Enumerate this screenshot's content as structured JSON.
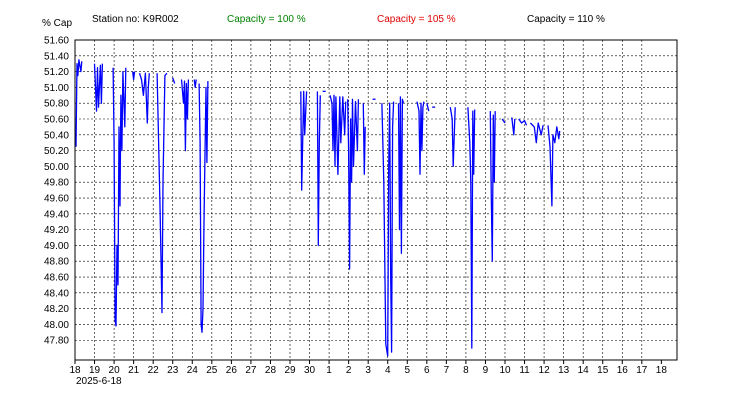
{
  "header": {
    "ylabel": "% Cap",
    "station": "Station no: K9R002",
    "capacity_labels": [
      {
        "text": "Capacity = 100 %",
        "color": "#008000"
      },
      {
        "text": "Capacity = 105 %",
        "color": "#e00000"
      },
      {
        "text": "Capacity = 110 %",
        "color": "#000000"
      }
    ],
    "date_label": "2025-6-18"
  },
  "colors": {
    "series": "#0000ff",
    "grid": "#000000",
    "frame": "#000000",
    "text": "#000000"
  },
  "chart_data": {
    "type": "line",
    "title": "",
    "ylabel": "% Cap",
    "xlabel": "",
    "ylim": [
      47.55,
      51.6
    ],
    "yticks": [
      47.8,
      48.0,
      48.2,
      48.4,
      48.6,
      48.8,
      49.0,
      49.2,
      49.4,
      49.6,
      49.8,
      50.0,
      50.2,
      50.4,
      50.6,
      50.8,
      51.0,
      51.2,
      51.4,
      51.6
    ],
    "ytick_labels": [
      "47.80",
      "48.00",
      "48.20",
      "48.40",
      "48.60",
      "48.80",
      "49.00",
      "49.20",
      "49.40",
      "49.60",
      "49.80",
      "50.00",
      "50.20",
      "50.40",
      "50.60",
      "50.80",
      "51.00",
      "51.20",
      "51.40",
      "51.60"
    ],
    "x_start_date": "2025-06-18",
    "xlim_days": [
      0,
      30.8
    ],
    "xtick_labels": [
      "18",
      "19",
      "20",
      "21",
      "22",
      "23",
      "24",
      "25",
      "26",
      "27",
      "28",
      "29",
      "30",
      "1",
      "2",
      "3",
      "4",
      "5",
      "6",
      "7",
      "8",
      "9",
      "10",
      "11",
      "12",
      "13",
      "14",
      "15",
      "16",
      "17",
      "18"
    ],
    "grid": true,
    "series": [
      {
        "name": "",
        "segments": [
          [
            [
              0.05,
              50.25
            ],
            [
              0.1,
              51.3
            ],
            [
              0.15,
              51.15
            ],
            [
              0.2,
              51.35
            ],
            [
              0.3,
              51.2
            ],
            [
              0.35,
              51.33
            ]
          ],
          [
            [
              1.0,
              51.3
            ],
            [
              1.1,
              50.7
            ],
            [
              1.15,
              51.25
            ],
            [
              1.2,
              50.75
            ],
            [
              1.3,
              51.28
            ],
            [
              1.35,
              50.8
            ],
            [
              1.4,
              51.3
            ]
          ],
          [
            [
              1.95,
              51.25
            ],
            [
              2.0,
              50.3
            ],
            [
              2.05,
              48.05
            ],
            [
              2.1,
              47.98
            ],
            [
              2.15,
              49.0
            ],
            [
              2.2,
              48.5
            ],
            [
              2.25,
              50.5
            ],
            [
              2.3,
              49.5
            ],
            [
              2.35,
              50.9
            ],
            [
              2.4,
              50.2
            ],
            [
              2.45,
              51.2
            ],
            [
              2.55,
              50.5
            ],
            [
              2.6,
              51.25
            ]
          ],
          [
            [
              2.95,
              51.2
            ],
            [
              3.0,
              51.1
            ],
            [
              3.05,
              51.2
            ]
          ],
          [
            [
              3.3,
              51.18
            ],
            [
              3.4,
              51.1
            ],
            [
              3.5,
              50.9
            ],
            [
              3.6,
              51.18
            ],
            [
              3.7,
              50.55
            ],
            [
              3.75,
              51.0
            ],
            [
              3.8,
              51.18
            ]
          ],
          [
            [
              4.2,
              51.18
            ],
            [
              4.35,
              49.5
            ],
            [
              4.45,
              48.15
            ],
            [
              4.5,
              49.8
            ],
            [
              4.6,
              51.15
            ],
            [
              4.7,
              51.18
            ]
          ],
          [
            [
              5.0,
              51.12
            ],
            [
              5.1,
              51.05
            ]
          ],
          [
            [
              5.45,
              51.1
            ],
            [
              5.55,
              50.8
            ],
            [
              5.6,
              51.08
            ],
            [
              5.65,
              50.2
            ],
            [
              5.7,
              51.05
            ],
            [
              5.75,
              50.6
            ],
            [
              5.8,
              51.1
            ]
          ],
          [
            [
              6.1,
              51.1
            ],
            [
              6.15,
              51.0
            ],
            [
              6.2,
              51.1
            ]
          ],
          [
            [
              6.35,
              51.05
            ],
            [
              6.4,
              50.3
            ],
            [
              6.45,
              48.0
            ],
            [
              6.5,
              47.9
            ],
            [
              6.55,
              48.2
            ],
            [
              6.6,
              49.3
            ],
            [
              6.7,
              51.0
            ],
            [
              6.75,
              50.05
            ],
            [
              6.8,
              51.08
            ]
          ],
          [
            [
              11.55,
              50.95
            ],
            [
              11.6,
              49.7
            ],
            [
              11.7,
              50.95
            ],
            [
              11.75,
              50.4
            ],
            [
              11.85,
              50.95
            ]
          ],
          [
            [
              12.4,
              50.95
            ],
            [
              12.45,
              49.0
            ],
            [
              12.5,
              50.3
            ],
            [
              12.55,
              50.9
            ]
          ],
          [
            [
              12.75,
              50.95
            ]
          ],
          [
            [
              13.05,
              50.9
            ],
            [
              13.15,
              50.8
            ],
            [
              13.2,
              50.2
            ],
            [
              13.25,
              50.9
            ],
            [
              13.3,
              50.0
            ],
            [
              13.35,
              50.88
            ],
            [
              13.45,
              49.9
            ],
            [
              13.55,
              50.88
            ],
            [
              13.6,
              50.3
            ],
            [
              13.7,
              50.88
            ],
            [
              13.8,
              50.4
            ],
            [
              13.85,
              50.82
            ]
          ],
          [
            [
              13.95,
              50.85
            ],
            [
              14.0,
              50.2
            ],
            [
              14.05,
              48.7
            ],
            [
              14.1,
              50.6
            ],
            [
              14.15,
              49.8
            ],
            [
              14.2,
              50.85
            ],
            [
              14.25,
              50.0
            ],
            [
              14.35,
              50.82
            ],
            [
              14.45,
              50.2
            ],
            [
              14.5,
              50.85
            ]
          ],
          [
            [
              14.75,
              50.8
            ],
            [
              14.8,
              49.9
            ],
            [
              14.85,
              50.5
            ]
          ],
          [
            [
              15.3,
              50.85
            ]
          ],
          [
            [
              15.7,
              50.8
            ],
            [
              15.8,
              49.8
            ],
            [
              15.9,
              47.75
            ],
            [
              16.0,
              47.6
            ],
            [
              16.05,
              50.0
            ],
            [
              16.1,
              50.8
            ],
            [
              16.15,
              48.6
            ],
            [
              16.2,
              47.65
            ],
            [
              16.25,
              50.5
            ],
            [
              16.3,
              50.82
            ]
          ],
          [
            [
              16.55,
              50.8
            ],
            [
              16.6,
              49.2
            ],
            [
              16.65,
              50.88
            ],
            [
              16.7,
              48.9
            ],
            [
              16.75,
              50.85
            ],
            [
              16.8,
              50.8
            ]
          ],
          [
            [
              17.5,
              50.82
            ],
            [
              17.6,
              50.7
            ],
            [
              17.65,
              49.9
            ],
            [
              17.7,
              50.8
            ],
            [
              17.75,
              50.2
            ],
            [
              17.8,
              50.75
            ],
            [
              17.85,
              50.82
            ]
          ],
          [
            [
              18.0,
              50.8
            ],
            [
              18.1,
              50.7
            ]
          ],
          [
            [
              18.35,
              50.75
            ]
          ],
          [
            [
              19.2,
              50.75
            ],
            [
              19.3,
              50.6
            ],
            [
              19.35,
              50.0
            ],
            [
              19.45,
              50.75
            ]
          ],
          [
            [
              20.1,
              50.75
            ],
            [
              20.2,
              50.3
            ],
            [
              20.25,
              49.8
            ],
            [
              20.3,
              47.7
            ],
            [
              20.35,
              50.7
            ],
            [
              20.4,
              49.9
            ],
            [
              20.45,
              50.72
            ]
          ],
          [
            [
              21.25,
              50.7
            ],
            [
              21.3,
              49.6
            ],
            [
              21.35,
              48.8
            ],
            [
              21.4,
              50.65
            ],
            [
              21.45,
              49.8
            ],
            [
              21.5,
              50.7
            ]
          ],
          [
            [
              21.85,
              50.6
            ],
            [
              22.0,
              50.55
            ]
          ],
          [
            [
              22.35,
              50.62
            ],
            [
              22.45,
              50.4
            ],
            [
              22.5,
              50.6
            ]
          ],
          [
            [
              22.7,
              50.6
            ],
            [
              22.85,
              50.55
            ],
            [
              23.0,
              50.58
            ],
            [
              23.1,
              50.52
            ]
          ],
          [
            [
              23.3,
              50.55
            ],
            [
              23.5,
              50.5
            ],
            [
              23.6,
              50.3
            ],
            [
              23.7,
              50.55
            ],
            [
              23.85,
              50.4
            ],
            [
              23.95,
              50.52
            ]
          ],
          [
            [
              24.2,
              50.52
            ],
            [
              24.3,
              50.25
            ],
            [
              24.4,
              49.5
            ],
            [
              24.45,
              50.4
            ],
            [
              24.55,
              50.3
            ],
            [
              24.65,
              50.5
            ],
            [
              24.75,
              50.35
            ],
            [
              24.8,
              50.45
            ]
          ]
        ]
      }
    ]
  }
}
